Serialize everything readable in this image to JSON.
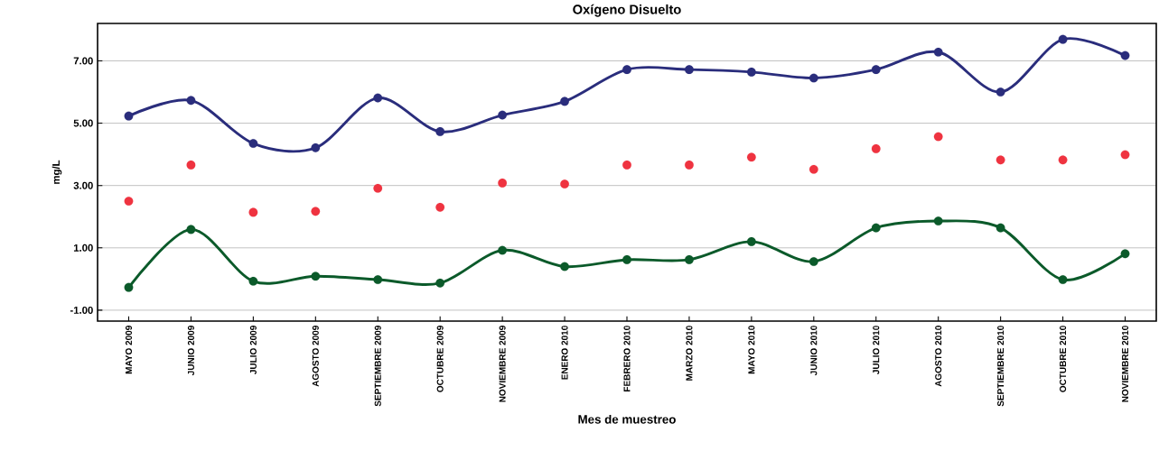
{
  "chart_data": {
    "type": "line",
    "title": "Oxígeno Disuelto",
    "xlabel": "Mes de muestreo",
    "ylabel": "mg/L",
    "categories": [
      "MAYO 2009",
      "JUNIO 2009",
      "JULIO 2009",
      "AGOSTO 2009",
      "SEPTIEMBRE 2009",
      "OCTUBRE 2009",
      "NOVIEMBRE 2009",
      "ENERO 2010",
      "FEBRERO 2010",
      "MARZO 2010",
      "MAYO 2010",
      "JUNIO 2010",
      "JULIO 2010",
      "AGOSTO 2010",
      "SEPTIEMBRE 2010",
      "OCTUBRE 2010",
      "NOVIEMBRE 2010"
    ],
    "series": [
      {
        "color": "#2a2d7c",
        "values": [
          5.23,
          5.73,
          4.35,
          4.21,
          5.81,
          4.73,
          5.26,
          5.7,
          6.72,
          6.72,
          6.64,
          6.45,
          6.72,
          7.28,
          6.0,
          7.69,
          7.17
        ]
      },
      {
        "type": "scatter",
        "color": "#ef3340",
        "values": [
          2.5,
          3.66,
          2.14,
          2.17,
          2.91,
          2.3,
          3.08,
          3.05,
          3.66,
          3.66,
          3.91,
          3.52,
          4.18,
          4.57,
          3.82,
          3.82,
          3.99
        ]
      },
      {
        "color": "#0b5a2a",
        "values": [
          -0.27,
          1.59,
          -0.07,
          0.09,
          -0.02,
          -0.13,
          0.92,
          0.4,
          0.62,
          0.62,
          1.2,
          0.56,
          1.64,
          1.86,
          1.64,
          -0.02,
          0.81
        ]
      }
    ],
    "ylim": [
      -1.35,
      8.2
    ],
    "yticks": [
      {
        "value": -1,
        "label": "-1.00"
      },
      {
        "value": 1,
        "label": "1.00"
      },
      {
        "value": 3,
        "label": "3.00"
      },
      {
        "value": 5,
        "label": "5.00"
      },
      {
        "value": 7,
        "label": "7.00"
      }
    ],
    "grid": "y",
    "marker": "circle"
  }
}
